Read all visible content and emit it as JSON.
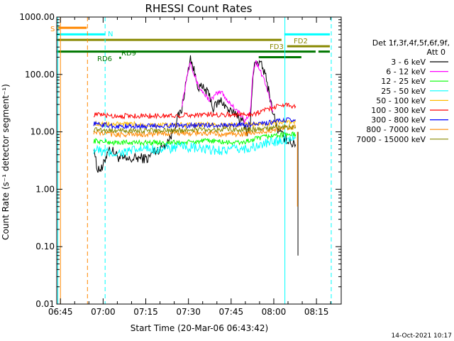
{
  "chart_data": {
    "type": "line",
    "title": "RHESSI Count Rates",
    "xlabel": "Start Time (20-Mar-06 06:43:42)",
    "ylabel": "Count Rate (s⁻¹ detector segment⁻¹)",
    "yscale": "log",
    "ylim": [
      0.01,
      1000
    ],
    "x_range_minutes": [
      0,
      100
    ],
    "x_ticks": [
      {
        "label": "06:45",
        "min": 1.3
      },
      {
        "label": "07:00",
        "min": 16.3
      },
      {
        "label": "07:15",
        "min": 31.3
      },
      {
        "label": "07:30",
        "min": 46.3
      },
      {
        "label": "07:45",
        "min": 61.3
      },
      {
        "label": "08:00",
        "min": 76.3
      },
      {
        "label": "08:15",
        "min": 91.3
      }
    ],
    "y_ticks": [
      "1000.00",
      "100.00",
      "10.00",
      "1.00",
      "0.10",
      "0.01"
    ],
    "legend": {
      "header": "Det 1f,3f,4f,5f,6f,9f,",
      "att": "Att 0",
      "placement": "right"
    },
    "series": [
      {
        "name": "3 - 6 keV",
        "color": "#000000",
        "x": [
          13,
          14,
          16,
          18,
          20,
          22,
          25,
          28,
          30,
          32,
          34,
          36,
          38,
          40,
          42,
          44,
          45,
          46,
          47,
          48,
          49,
          50,
          52,
          54,
          55,
          56,
          58,
          60,
          62,
          63,
          64,
          65,
          66,
          67,
          68,
          69,
          70,
          71,
          72,
          73,
          74,
          75,
          76,
          77,
          78,
          80,
          82,
          83,
          84
        ],
        "y": [
          6,
          2.4,
          2.2,
          5,
          4.5,
          3.5,
          3.2,
          3.5,
          3.5,
          3.4,
          4.5,
          5,
          6,
          8,
          15,
          25,
          55,
          100,
          200,
          130,
          80,
          60,
          55,
          40,
          25,
          30,
          35,
          25,
          20,
          22,
          18,
          15,
          14,
          10,
          12,
          100,
          180,
          160,
          140,
          110,
          70,
          40,
          22,
          14,
          10,
          8,
          7,
          6,
          6
        ]
      },
      {
        "name": "6 - 12 keV",
        "color": "#ff00ff",
        "x": [
          44,
          45,
          46,
          47,
          48,
          49,
          50,
          52,
          54,
          56,
          58,
          60,
          62,
          64,
          66,
          68,
          69,
          70,
          71,
          72,
          73,
          74,
          75,
          76
        ],
        "y": [
          30,
          55,
          110,
          180,
          110,
          80,
          60,
          45,
          35,
          45,
          50,
          35,
          28,
          22,
          15,
          22,
          110,
          170,
          130,
          100,
          80,
          55,
          35,
          22
        ]
      },
      {
        "name": "12 - 25 keV",
        "color": "#00ff00",
        "x": [
          13,
          20,
          30,
          40,
          45,
          50,
          55,
          60,
          65,
          70,
          75,
          80,
          84
        ],
        "y": [
          7,
          6.5,
          6.5,
          6.5,
          6.5,
          6.8,
          7,
          6.5,
          6.5,
          7.5,
          8.5,
          9,
          9
        ]
      },
      {
        "name": "25 - 50 keV",
        "color": "#00ffff",
        "x": [
          13,
          16,
          20,
          25,
          30,
          35,
          40,
          45,
          50,
          55,
          60,
          65,
          70,
          75,
          80,
          84
        ],
        "y": [
          5,
          4.5,
          4.2,
          4.5,
          5,
          5,
          5.2,
          5.5,
          5,
          4.8,
          4.8,
          5,
          5.5,
          6.5,
          7.5,
          8
        ]
      },
      {
        "name": "50 - 100 keV",
        "color": "#ffbb00",
        "x": [
          13,
          20,
          30,
          40,
          50,
          60,
          70,
          75,
          80,
          84
        ],
        "y": [
          14,
          13.5,
          13.5,
          13,
          13.5,
          13,
          13.5,
          14,
          15,
          15
        ]
      },
      {
        "name": "100 - 300 keV",
        "color": "#ff0000",
        "x": [
          13,
          20,
          30,
          40,
          50,
          55,
          60,
          65,
          70,
          75,
          80,
          84
        ],
        "y": [
          20,
          19,
          19,
          19,
          20,
          20,
          20,
          20,
          21,
          26,
          30,
          28
        ]
      },
      {
        "name": "300 - 800 keV",
        "color": "#0000ff",
        "x": [
          13,
          20,
          30,
          40,
          50,
          60,
          70,
          75,
          80,
          84
        ],
        "y": [
          14,
          12.5,
          12.5,
          13,
          13,
          13,
          13.5,
          14.5,
          16,
          16
        ]
      },
      {
        "name": "800 - 7000 keV",
        "color": "#ff8800",
        "x": [
          13,
          20,
          30,
          40,
          50,
          60,
          70,
          75,
          80,
          84
        ],
        "y": [
          10,
          9,
          9,
          9.5,
          9.5,
          9,
          9.5,
          10.5,
          12,
          12
        ]
      },
      {
        "name": "7000 - 15000 keV",
        "color": "#888800",
        "x": [
          13,
          20,
          30,
          40,
          50,
          60,
          70,
          80,
          84
        ],
        "y": [
          11,
          10.5,
          10.5,
          10.5,
          11,
          11,
          11,
          12,
          12
        ]
      }
    ],
    "dropoff": {
      "x": 84.8,
      "y_from": 10,
      "y_to": 0.07
    },
    "vlines": [
      {
        "x": 0.4,
        "color": "#00ffff",
        "style": "solid"
      },
      {
        "x": 1.3,
        "color": "#ff8800",
        "style": "solid"
      },
      {
        "x": 10.8,
        "color": "#ff8800",
        "style": "dashed"
      },
      {
        "x": 17.0,
        "color": "#00ffff",
        "style": "dashed"
      },
      {
        "x": 80.2,
        "color": "#00ffff",
        "style": "solid"
      },
      {
        "x": 96.5,
        "color": "#00ffff",
        "style": "dashed"
      }
    ],
    "annotations": [
      {
        "label": "S",
        "color": "#ff8800"
      },
      {
        "label": "N",
        "color": "#00ffff"
      },
      {
        "label": "FD2",
        "color": "#888800"
      },
      {
        "label": "FD3",
        "color": "#888800"
      },
      {
        "label": "RD6",
        "color": "#007700"
      },
      {
        "label": "RD9",
        "color": "#007700"
      }
    ],
    "bars": [
      {
        "x0": 0,
        "x1": 10.5,
        "y": 650,
        "color": "#ff8800"
      },
      {
        "x0": 0,
        "x1": 17,
        "y": 500,
        "color": "#00ffff"
      },
      {
        "x0": 80,
        "x1": 96,
        "y": 500,
        "color": "#00ffff"
      },
      {
        "x0": 0,
        "x1": 79,
        "y": 400,
        "color": "#888800"
      },
      {
        "x0": 81,
        "x1": 96,
        "y": 310,
        "color": "#888800"
      },
      {
        "x0": 0,
        "x1": 91,
        "y": 250,
        "color": "#007700"
      },
      {
        "x0": 92,
        "x1": 96,
        "y": 250,
        "color": "#007700"
      },
      {
        "x0": 71,
        "x1": 86,
        "y": 200,
        "color": "#007700"
      },
      {
        "x0": 22,
        "x1": 22.6,
        "y": 195,
        "color": "#007700"
      }
    ]
  },
  "footer": {
    "timestamp": "14-Oct-2021 10:17"
  }
}
